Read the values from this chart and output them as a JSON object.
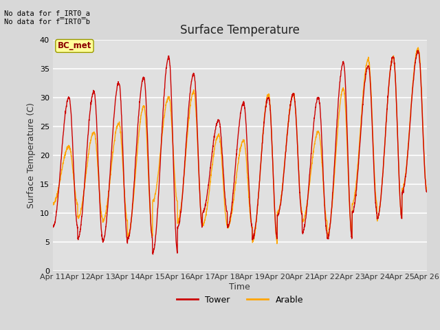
{
  "title": "Surface Temperature",
  "xlabel": "Time",
  "ylabel": "Surface Temperature (C)",
  "ylim": [
    0,
    40
  ],
  "fig_bg": "#d8d8d8",
  "plot_bg": "#e0e0e0",
  "tower_color": "#cc0000",
  "arable_color": "#ffa500",
  "legend_label_tower": "Tower",
  "legend_label_arable": "Arable",
  "annotation_line1": "No data for f_IRT0_a",
  "annotation_line2": "No data for f̅IRT0̅b",
  "box_label": "BC_met",
  "x_tick_labels": [
    "Apr 11",
    "Apr 12",
    "Apr 13",
    "Apr 14",
    "Apr 15",
    "Apr 16",
    "Apr 17",
    "Apr 18",
    "Apr 19",
    "Apr 20",
    "Apr 21",
    "Apr 22",
    "Apr 23",
    "Apr 24",
    "Apr 25",
    "Apr 26"
  ],
  "n_days": 15,
  "n_pts": 144,
  "tower_peaks": [
    30,
    31,
    32.5,
    33.5,
    37,
    34,
    26,
    29,
    30,
    30.5,
    30,
    36,
    35.5,
    37,
    38
  ],
  "tower_mins": [
    7.5,
    5.5,
    5,
    5.5,
    3,
    7.5,
    10,
    7.5,
    5.5,
    9.5,
    6.5,
    5.5,
    10,
    9,
    13.5
  ],
  "arable_peaks": [
    21.5,
    24,
    25.5,
    28.5,
    30,
    31,
    23.5,
    22.5,
    30.5,
    30.5,
    24,
    31.5,
    36.5,
    37,
    38.5
  ],
  "arable_mins": [
    11.5,
    9,
    8.5,
    6,
    12,
    8.5,
    8,
    7.5,
    5,
    10,
    8.5,
    6,
    11.5,
    9,
    14
  ]
}
